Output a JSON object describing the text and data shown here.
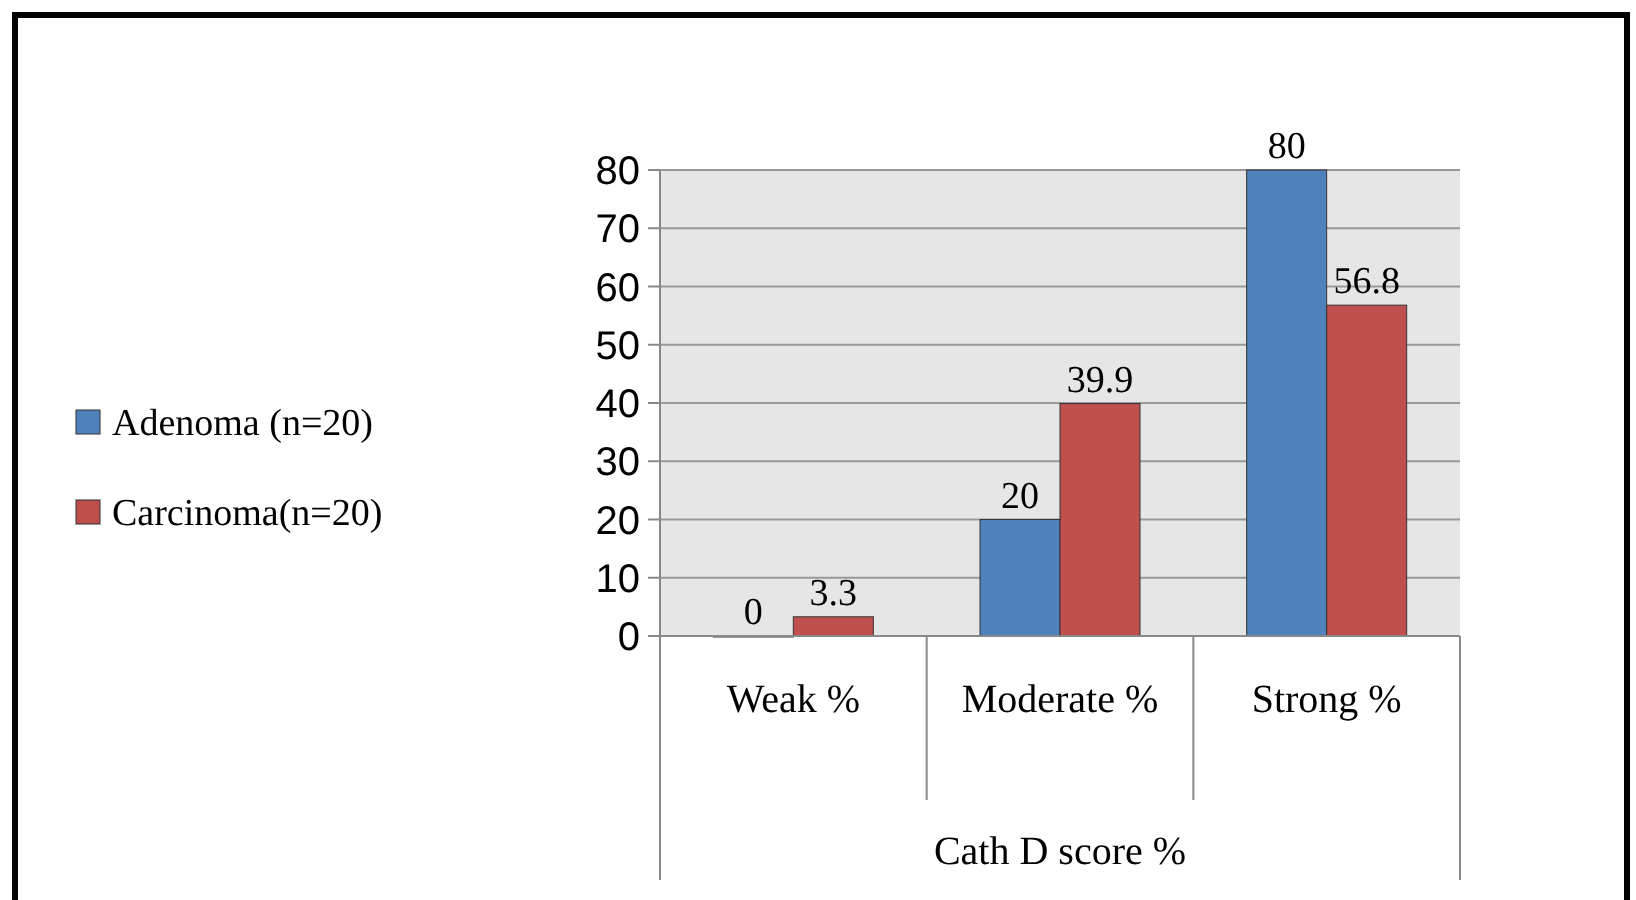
{
  "chart_data": {
    "type": "bar",
    "xlabel": "Cath D score %",
    "categories": [
      "Weak %",
      "Moderate %",
      "Strong %"
    ],
    "series": [
      {
        "name": "Adenoma (n=20)",
        "color": "#4f81bd",
        "values": [
          0,
          20,
          80
        ]
      },
      {
        "name": "Carcinoma(n=20)",
        "color": "#c0504d",
        "values": [
          3.3,
          39.9,
          56.8
        ]
      }
    ],
    "ylim": [
      0,
      80
    ],
    "yticks": [
      0,
      10,
      20,
      30,
      40,
      50,
      60,
      70,
      80
    ],
    "grid": "y",
    "legend": "left",
    "data_labels": true
  }
}
